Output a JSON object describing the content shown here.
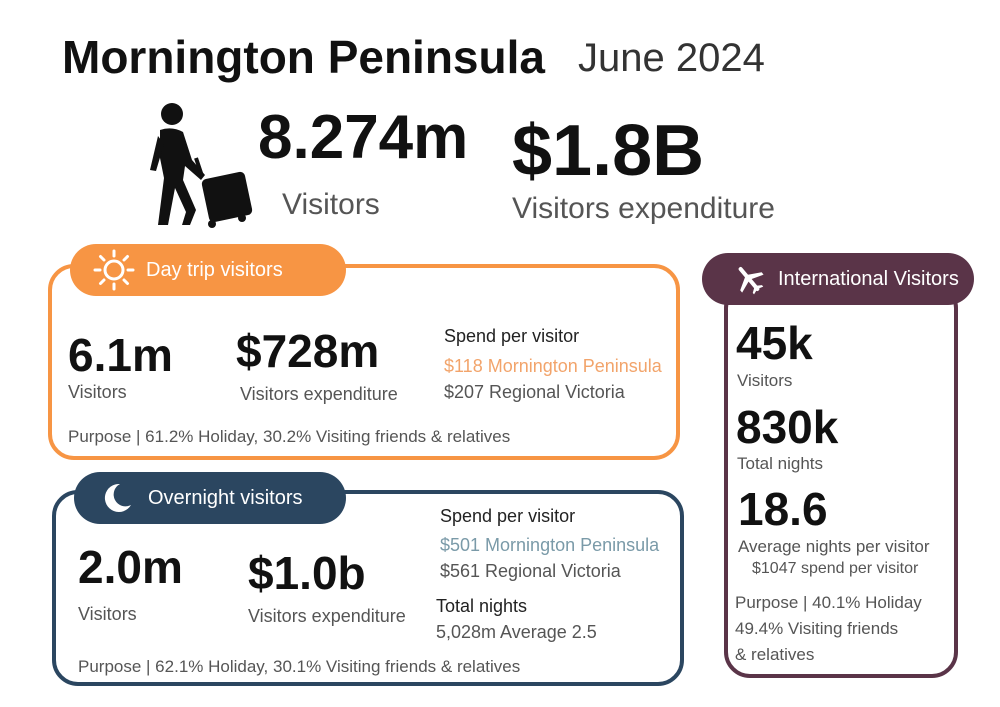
{
  "header": {
    "title": "Mornington Peninsula",
    "period": "June 2024"
  },
  "summary": {
    "visitors_value": "8.274m",
    "visitors_label": "Visitors",
    "expenditure_value": "$1.8B",
    "expenditure_label": "Visitors expenditure",
    "icon": "traveller-with-luggage-icon"
  },
  "day_trip": {
    "title": "Day trip visitors",
    "icon": "sun-icon",
    "color": "#f79544",
    "visitors_value": "6.1m",
    "visitors_label": "Visitors",
    "expenditure_value": "$728m",
    "expenditure_label": "Visitors expenditure",
    "spend_heading": "Spend per visitor",
    "spend_local": "$118 Mornington Peninsula",
    "spend_regional": "$207 Regional Victoria",
    "purpose": "Purpose |  61.2% Holiday, 30.2% Visiting friends & relatives"
  },
  "overnight": {
    "title": "Overnight visitors",
    "icon": "moon-icon",
    "color": "#2b4660",
    "visitors_value": "2.0m",
    "visitors_label": "Visitors",
    "expenditure_value": "$1.0b",
    "expenditure_label": "Visitors expenditure",
    "spend_heading": "Spend per visitor",
    "spend_local": "$501 Mornington Peninsula",
    "spend_regional": "$561 Regional Victoria",
    "nights_heading": "Total nights",
    "nights_value": "5,028m Average 2.5",
    "purpose": "Purpose |  62.1% Holiday, 30.1% Visiting friends & relatives"
  },
  "international": {
    "title": "International Visitors",
    "icon": "airplane-icon",
    "color": "#5a3448",
    "visitors_value": "45k",
    "visitors_label": "Visitors",
    "nights_value": "830k",
    "nights_label": "Total nights",
    "avg_value": "18.6",
    "avg_label": "Average nights per visitor",
    "spend": "$1047 spend per visitor",
    "purpose_line1": "Purpose | 40.1% Holiday",
    "purpose_line2": "49.4% Visiting friends",
    "purpose_line3": "& relatives"
  }
}
